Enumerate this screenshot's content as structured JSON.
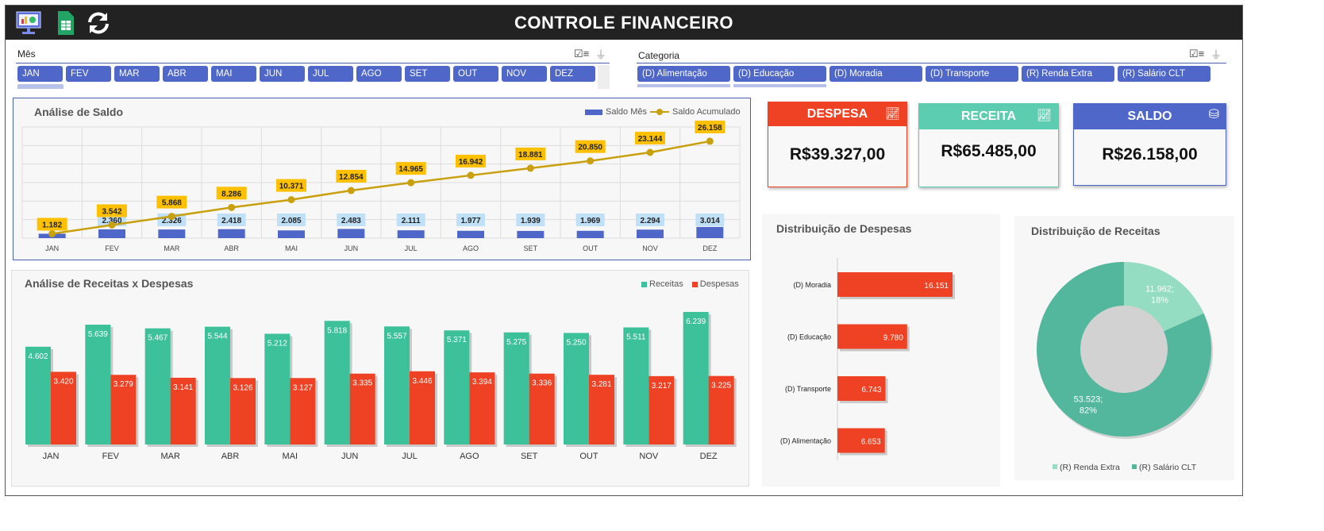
{
  "header": {
    "title": "CONTROLE FINANCEIRO",
    "icons": [
      "presentation-chart-icon",
      "spreadsheet-icon",
      "refresh-icon"
    ]
  },
  "month_slicer": {
    "label": "Mês",
    "items": [
      "JAN",
      "FEV",
      "MAR",
      "ABR",
      "MAI",
      "JUN",
      "JUL",
      "AGO",
      "SET",
      "OUT",
      "NOV",
      "DEZ"
    ]
  },
  "category_slicer": {
    "label": "Categoria",
    "items": [
      "(D) Alimentação",
      "(D) Educação",
      "(D) Moradia",
      "(D) Transporte",
      "(R) Renda Extra",
      "(R) Salário CLT"
    ]
  },
  "kpis": {
    "despesa": {
      "label": "DESPESA",
      "value": "R$39.327,00",
      "color": "#ef4123"
    },
    "receita": {
      "label": "RECEITA",
      "value": "R$65.485,00",
      "color": "#5ccdb0"
    },
    "saldo": {
      "label": "SALDO",
      "value": "R$26.158,00",
      "color": "#4f67c8"
    }
  },
  "chart_data": [
    {
      "type": "bar+line",
      "title": "Análise de Saldo",
      "legend_position": "top-right",
      "grid": true,
      "categories": [
        "JAN",
        "FEV",
        "MAR",
        "ABR",
        "MAI",
        "JUN",
        "JUL",
        "AGO",
        "SET",
        "OUT",
        "NOV",
        "DEZ"
      ],
      "series": [
        {
          "name": "Saldo Mês",
          "type": "bar",
          "color": "#4f67c8",
          "values": [
            1182,
            2360,
            2326,
            2418,
            2085,
            2483,
            2111,
            1977,
            1939,
            1969,
            2294,
            3014
          ],
          "labels": [
            "",
            "2.360",
            "2.326",
            "2.418",
            "2.085",
            "2.483",
            "2.111",
            "1.977",
            "1.939",
            "1.969",
            "2.294",
            "3.014"
          ]
        },
        {
          "name": "Saldo Acumulado",
          "type": "line",
          "color": "#c9a00e",
          "values": [
            1182,
            3542,
            5868,
            8286,
            10371,
            12854,
            14965,
            16942,
            18881,
            20850,
            23144,
            26158
          ],
          "labels": [
            "1.182",
            "3.542",
            "5.868",
            "8.286",
            "10.371",
            "12.854",
            "14.965",
            "16.942",
            "18.881",
            "20.850",
            "23.144",
            "26.158"
          ]
        }
      ],
      "ylim": [
        0,
        30000
      ]
    },
    {
      "type": "bar",
      "title": "Análise de Receitas x Despesas",
      "legend_position": "top-right",
      "categories": [
        "JAN",
        "FEV",
        "MAR",
        "ABR",
        "MAI",
        "JUN",
        "JUL",
        "AGO",
        "SET",
        "OUT",
        "NOV",
        "DEZ"
      ],
      "series": [
        {
          "name": "Receitas",
          "color": "#3cc19b",
          "values": [
            4602,
            5639,
            5467,
            5544,
            5212,
            5818,
            5557,
            5371,
            5275,
            5250,
            5511,
            6239
          ],
          "labels": [
            "4.602",
            "5.639",
            "5.467",
            "5.544",
            "5.212",
            "5.818",
            "5.557",
            "5.371",
            "5.275",
            "5.250",
            "5.511",
            "6.239"
          ]
        },
        {
          "name": "Despesas",
          "color": "#ef4123",
          "values": [
            3420,
            3279,
            3141,
            3126,
            3127,
            3335,
            3446,
            3394,
            3336,
            3281,
            3217,
            3225
          ],
          "labels": [
            "3.420",
            "3.279",
            "3.141",
            "3.126",
            "3.127",
            "3.335",
            "3.446",
            "3.394",
            "3.336",
            "3.281",
            "3.217",
            "3.225"
          ]
        }
      ]
    },
    {
      "type": "bar",
      "orientation": "horizontal",
      "title": "Distribuição de Despesas",
      "color": "#ef4123",
      "categories": [
        "(D) Moradia",
        "(D) Educação",
        "(D) Transporte",
        "(D) Alimentação"
      ],
      "values": [
        16151,
        9780,
        6743,
        6653
      ],
      "labels": [
        "16.151",
        "9.780",
        "6.743",
        "6.653"
      ]
    },
    {
      "type": "pie",
      "donut": true,
      "title": "Distribuição de Receitas",
      "legend_position": "bottom",
      "categories": [
        "(R) Renda Extra",
        "(R) Salário CLT"
      ],
      "values": [
        11962,
        53523
      ],
      "labels": [
        "11.962;",
        "53.523;"
      ],
      "percent_labels": [
        "18%",
        "82%"
      ],
      "colors": [
        "#94dcc2",
        "#52b79c"
      ]
    }
  ]
}
